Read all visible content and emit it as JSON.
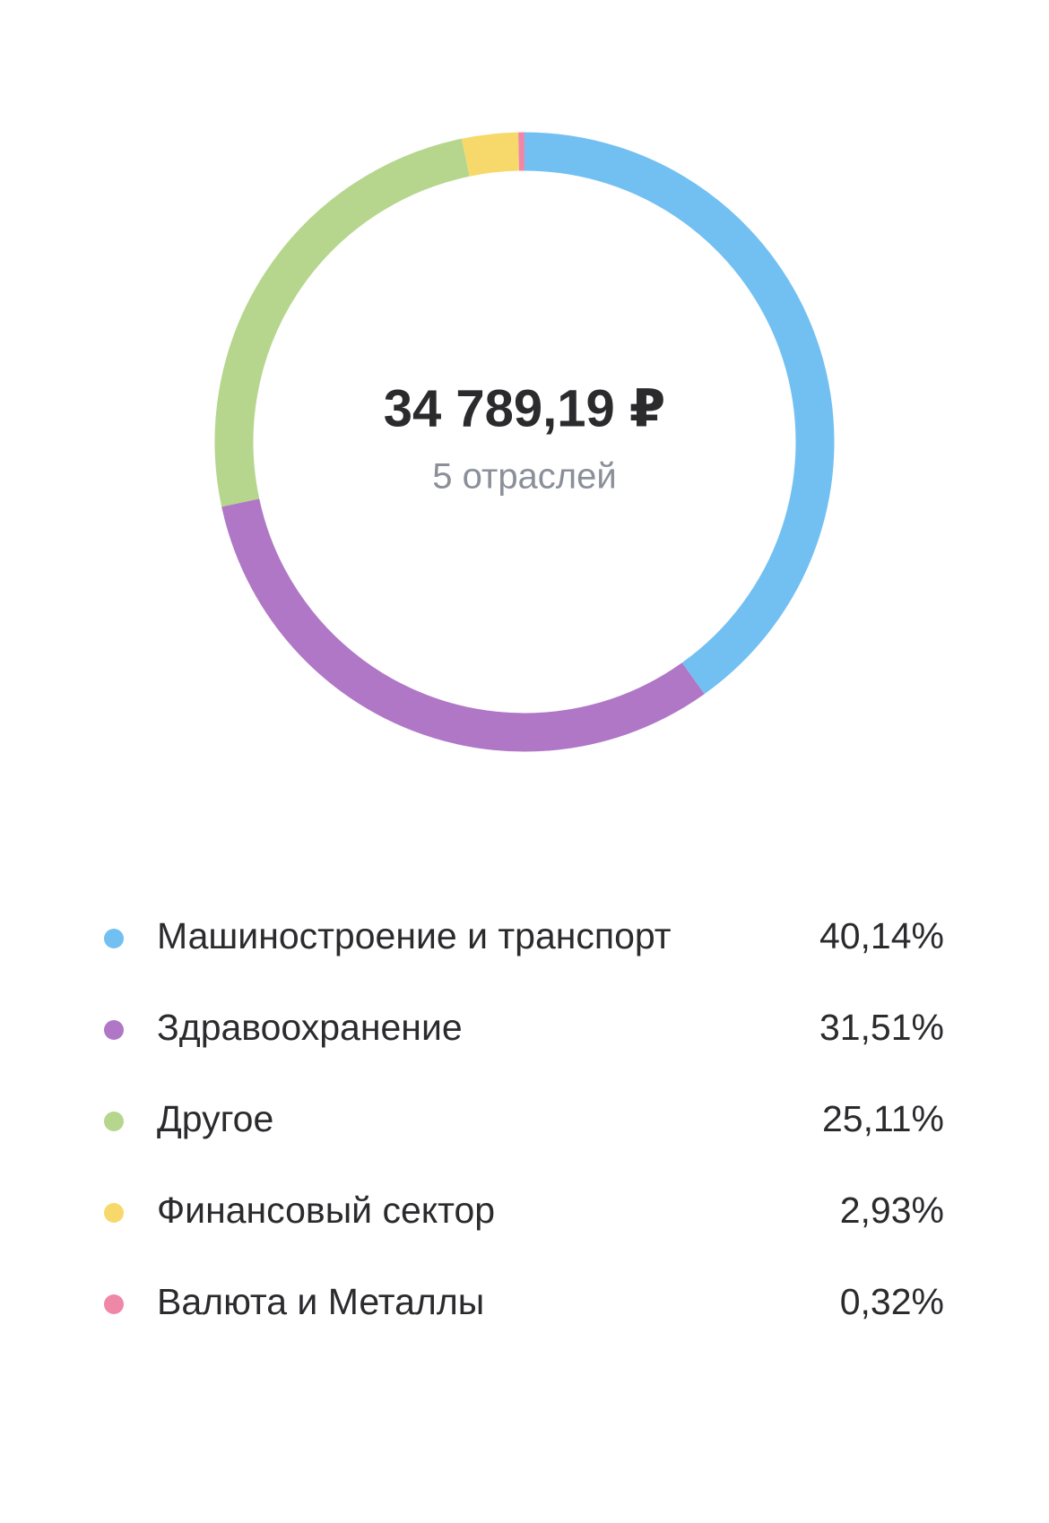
{
  "chart_data": {
    "type": "pie",
    "title": "34 789,19 ₽",
    "subtitle": "5 отраслей",
    "categories": [
      "Машиностроение и транспорт",
      "Здравоохранение",
      "Другое",
      "Финансовый сектор",
      "Валюта и Металлы"
    ],
    "values": [
      40.14,
      31.51,
      25.11,
      2.93,
      0.32
    ],
    "value_labels": [
      "40,14%",
      "31,51%",
      "25,11%",
      "2,93%",
      "0,32%"
    ],
    "colors": [
      "#72c0f2",
      "#b077c6",
      "#b5d68c",
      "#f7d96b",
      "#ef87a8"
    ]
  }
}
